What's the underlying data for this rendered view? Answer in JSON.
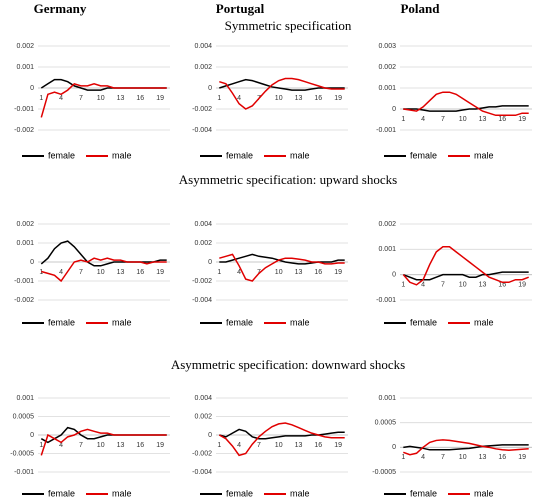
{
  "columns": [
    "Germany",
    "Portugal",
    "Poland"
  ],
  "sections": [
    "Symmetric specification",
    "Asymmetric specification: upward shocks",
    "Asymmetric specification: downward shocks"
  ],
  "chart_data": [
    {
      "type": "line",
      "categories": [
        "1",
        null,
        null,
        "4",
        null,
        null,
        "7",
        null,
        null,
        "10",
        null,
        null,
        "13",
        null,
        null,
        "16",
        null,
        null,
        "19",
        null
      ],
      "ylim": [
        -0.002,
        0.002
      ],
      "yticks": [
        -0.002,
        -0.001,
        0,
        0.001,
        0.002
      ],
      "grid": true,
      "series": [
        {
          "name": "female",
          "color": "#000000",
          "values": [
            0,
            0.0002,
            0.0004,
            0.0004,
            0.0003,
            0.0001,
            0,
            -0.0001,
            -0.0001,
            -0.0001,
            0,
            0,
            0,
            0,
            0,
            0,
            0,
            0,
            0,
            0
          ]
        },
        {
          "name": "male",
          "color": "#e00000",
          "values": [
            -0.0014,
            -0.0003,
            -0.0002,
            -0.0003,
            -0.0001,
            0.0002,
            0.0001,
            0.0001,
            0.0002,
            0.0001,
            0.0001,
            0,
            0,
            0,
            0,
            0,
            0,
            0,
            0,
            0
          ]
        }
      ]
    },
    {
      "type": "line",
      "categories": [
        "1",
        null,
        null,
        "4",
        null,
        null,
        "7",
        null,
        null,
        "10",
        null,
        null,
        "13",
        null,
        null,
        "16",
        null,
        null,
        "19",
        null
      ],
      "ylim": [
        -0.004,
        0.004
      ],
      "yticks": [
        -0.004,
        -0.002,
        0,
        0.002,
        0.004
      ],
      "grid": true,
      "series": [
        {
          "name": "female",
          "color": "#000000",
          "values": [
            0,
            0.0002,
            0.0004,
            0.0006,
            0.0008,
            0.0007,
            0.0005,
            0.0003,
            0.0001,
            0,
            -0.0001,
            -0.0002,
            -0.0002,
            -0.0002,
            -0.0001,
            0,
            0,
            0,
            0,
            0
          ]
        },
        {
          "name": "male",
          "color": "#e00000",
          "values": [
            0.0006,
            0.0004,
            -0.0005,
            -0.0015,
            -0.002,
            -0.0017,
            -0.001,
            -0.0003,
            0.0003,
            0.0007,
            0.0009,
            0.0009,
            0.0008,
            0.0006,
            0.0004,
            0.0002,
            0,
            -0.0001,
            -0.0001,
            -0.0001
          ]
        }
      ]
    },
    {
      "type": "line",
      "categories": [
        "1",
        null,
        null,
        "4",
        null,
        null,
        "7",
        null,
        null,
        "10",
        null,
        null,
        "13",
        null,
        null,
        "16",
        null,
        null,
        "19",
        null
      ],
      "ylim": [
        -0.001,
        0.003
      ],
      "yticks": [
        -0.001,
        0,
        0.001,
        0.002,
        0.003
      ],
      "grid": true,
      "series": [
        {
          "name": "female",
          "color": "#000000",
          "values": [
            0,
            0,
            0,
            -5e-05,
            -0.0001,
            -0.0001,
            -0.0001,
            -0.0001,
            -0.0001,
            -5e-05,
            0,
            0,
            5e-05,
            0.0001,
            0.0001,
            0.00015,
            0.00015,
            0.00015,
            0.00015,
            0.00015
          ]
        },
        {
          "name": "male",
          "color": "#e00000",
          "values": [
            0,
            -5e-05,
            -0.0001,
            0.0001,
            0.0004,
            0.0007,
            0.0008,
            0.0008,
            0.0007,
            0.0005,
            0.0003,
            0.0001,
            -0.0001,
            -0.0002,
            -0.0003,
            -0.0003,
            -0.0003,
            -0.0003,
            -0.0002,
            -0.0002
          ]
        }
      ]
    },
    {
      "type": "line",
      "categories": [
        "1",
        null,
        null,
        "4",
        null,
        null,
        "7",
        null,
        null,
        "10",
        null,
        null,
        "13",
        null,
        null,
        "16",
        null,
        null,
        "19",
        null
      ],
      "ylim": [
        -0.002,
        0.002
      ],
      "yticks": [
        -0.002,
        -0.001,
        0,
        0.001,
        0.002
      ],
      "grid": true,
      "series": [
        {
          "name": "female",
          "color": "#000000",
          "values": [
            -0.0001,
            0.0002,
            0.0007,
            0.001,
            0.0011,
            0.0008,
            0.0004,
            0,
            -0.0002,
            -0.0002,
            -0.0001,
            0,
            0,
            0,
            0,
            0,
            0,
            0,
            0.0001,
            0.0001
          ]
        },
        {
          "name": "male",
          "color": "#e00000",
          "values": [
            -0.0005,
            -0.0006,
            -0.0007,
            -0.001,
            -0.0005,
            0,
            0.0001,
            0,
            0.0002,
            0.0001,
            0.0002,
            0.0001,
            0.0001,
            0,
            0,
            0,
            -0.0001,
            0,
            0,
            0
          ]
        }
      ]
    },
    {
      "type": "line",
      "categories": [
        "1",
        null,
        null,
        "4",
        null,
        null,
        "7",
        null,
        null,
        "10",
        null,
        null,
        "13",
        null,
        null,
        "16",
        null,
        null,
        "19",
        null
      ],
      "ylim": [
        -0.004,
        0.004
      ],
      "yticks": [
        -0.004,
        -0.002,
        0,
        0.002,
        0.004
      ],
      "grid": true,
      "series": [
        {
          "name": "female",
          "color": "#000000",
          "values": [
            0,
            0,
            0.0002,
            0.0004,
            0.0006,
            0.0008,
            0.0006,
            0.0005,
            0.0004,
            0.0002,
            0,
            -0.0001,
            -0.0002,
            -0.0002,
            -0.0001,
            0,
            0,
            0,
            0.0002,
            0.0002
          ]
        },
        {
          "name": "male",
          "color": "#e00000",
          "values": [
            0.0004,
            0.0006,
            0.0008,
            -0.0004,
            -0.0018,
            -0.002,
            -0.0012,
            -0.0006,
            -0.0002,
            0.0002,
            0.0004,
            0.0004,
            0.0003,
            0.0002,
            0,
            0,
            -0.0002,
            -0.0002,
            -0.0001,
            -0.0001
          ]
        }
      ]
    },
    {
      "type": "line",
      "categories": [
        "1",
        null,
        null,
        "4",
        null,
        null,
        "7",
        null,
        null,
        "10",
        null,
        null,
        "13",
        null,
        null,
        "16",
        null,
        null,
        "19",
        null
      ],
      "ylim": [
        -0.001,
        0.002
      ],
      "yticks": [
        -0.001,
        0,
        0.001,
        0.002
      ],
      "grid": true,
      "series": [
        {
          "name": "female",
          "color": "#000000",
          "values": [
            0,
            -0.0001,
            -0.0002,
            -0.0002,
            -0.0002,
            -0.0001,
            0,
            0,
            0,
            0,
            -0.0001,
            -0.0001,
            0,
            0,
            5e-05,
            0.0001,
            0.0001,
            0.0001,
            0.0001,
            0.0001
          ]
        },
        {
          "name": "male",
          "color": "#e00000",
          "values": [
            0,
            -0.0003,
            -0.0004,
            -0.0002,
            0.0004,
            0.0009,
            0.0011,
            0.0011,
            0.0009,
            0.0007,
            0.0005,
            0.0003,
            0.0001,
            -0.0001,
            -0.0002,
            -0.0003,
            -0.0003,
            -0.0002,
            -0.0002,
            -0.0001
          ]
        }
      ]
    },
    {
      "type": "line",
      "categories": [
        "1",
        null,
        null,
        "4",
        null,
        null,
        "7",
        null,
        null,
        "10",
        null,
        null,
        "13",
        null,
        null,
        "16",
        null,
        null,
        "19",
        null
      ],
      "ylim": [
        -0.001,
        0.001
      ],
      "yticks": [
        -0.001,
        -0.0005,
        0,
        0.0005,
        0.001
      ],
      "grid": true,
      "series": [
        {
          "name": "female",
          "color": "#000000",
          "values": [
            -0.0001,
            -0.0002,
            -0.0001,
            0,
            0.0002,
            0.00015,
            0,
            -0.0001,
            -0.0001,
            -5e-05,
            0,
            0,
            0,
            0,
            0,
            0,
            0,
            0,
            0,
            0
          ]
        },
        {
          "name": "male",
          "color": "#e00000",
          "values": [
            -0.00055,
            0,
            -0.0001,
            -0.0002,
            -5e-05,
            0,
            0.0001,
            0.00015,
            0.0001,
            5e-05,
            5e-05,
            0,
            0,
            0,
            0,
            0,
            0,
            0,
            0,
            0
          ]
        }
      ]
    },
    {
      "type": "line",
      "categories": [
        "1",
        null,
        null,
        "4",
        null,
        null,
        "7",
        null,
        null,
        "10",
        null,
        null,
        "13",
        null,
        null,
        "16",
        null,
        null,
        "19",
        null
      ],
      "ylim": [
        -0.004,
        0.004
      ],
      "yticks": [
        -0.004,
        -0.002,
        0,
        0.002,
        0.004
      ],
      "grid": true,
      "series": [
        {
          "name": "female",
          "color": "#000000",
          "values": [
            0,
            -0.0002,
            0.0002,
            0.0006,
            0.0004,
            -0.0002,
            -0.0004,
            -0.0004,
            -0.0003,
            -0.0002,
            -0.0001,
            -0.0001,
            -0.0001,
            -0.0001,
            0,
            0,
            0.0001,
            0.0002,
            0.0003,
            0.0003
          ]
        },
        {
          "name": "male",
          "color": "#e00000",
          "values": [
            0,
            -0.0004,
            -0.0012,
            -0.0022,
            -0.002,
            -0.001,
            -0.0002,
            0.0004,
            0.0009,
            0.0012,
            0.0013,
            0.0011,
            0.0008,
            0.0005,
            0.0002,
            0,
            -0.0002,
            -0.0003,
            -0.0003,
            -0.0003
          ]
        }
      ]
    },
    {
      "type": "line",
      "categories": [
        "1",
        null,
        null,
        "4",
        null,
        null,
        "7",
        null,
        null,
        "10",
        null,
        null,
        "13",
        null,
        null,
        "16",
        null,
        null,
        "19",
        null
      ],
      "ylim": [
        -0.0005,
        0.001
      ],
      "yticks": [
        -0.0005,
        0,
        0.0005,
        0.001
      ],
      "grid": true,
      "series": [
        {
          "name": "female",
          "color": "#000000",
          "values": [
            0,
            2e-05,
            0,
            -2e-05,
            -5e-05,
            -5e-05,
            -5e-05,
            -5e-05,
            -4e-05,
            -3e-05,
            -2e-05,
            0,
            2e-05,
            3e-05,
            4e-05,
            5e-05,
            5e-05,
            5e-05,
            5e-05,
            5e-05
          ]
        },
        {
          "name": "male",
          "color": "#e00000",
          "values": [
            -0.0001,
            -0.00015,
            -0.00012,
            0,
            0.0001,
            0.00014,
            0.00015,
            0.00014,
            0.00012,
            0.0001,
            8e-05,
            5e-05,
            2e-05,
            0,
            -3e-05,
            -5e-05,
            -6e-05,
            -5e-05,
            -4e-05,
            -3e-05
          ]
        }
      ]
    }
  ]
}
